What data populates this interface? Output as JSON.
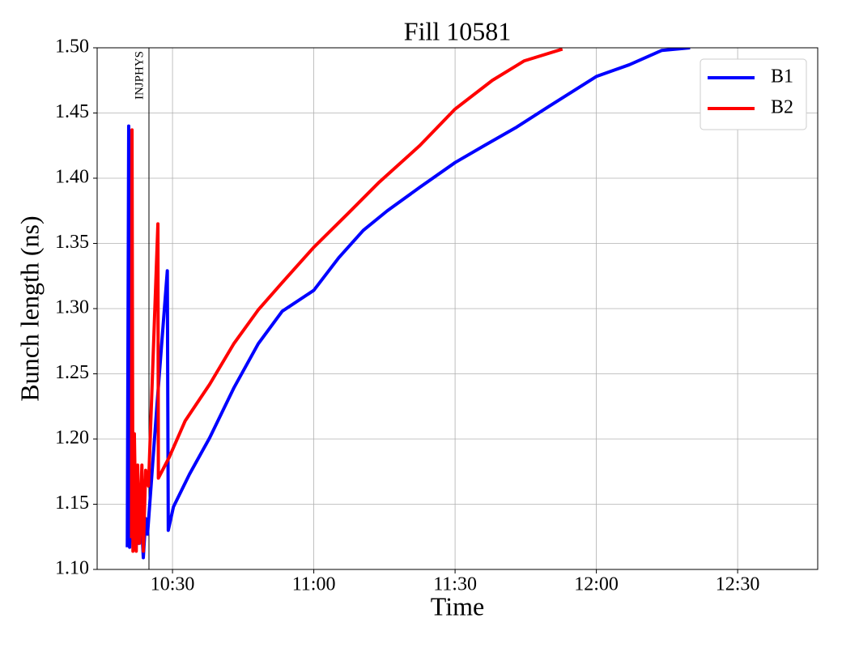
{
  "chart_data": {
    "type": "line",
    "title": "Fill 10581",
    "x_label": "Time",
    "y_label": "Bunch length (ns)",
    "xlim": [
      614,
      767
    ],
    "ylim": [
      1.1,
      1.5
    ],
    "xticks": [
      {
        "value": 630,
        "label": "10:30"
      },
      {
        "value": 660,
        "label": "11:00"
      },
      {
        "value": 690,
        "label": "11:30"
      },
      {
        "value": 720,
        "label": "12:00"
      },
      {
        "value": 750,
        "label": "12:30"
      }
    ],
    "yticks": [
      {
        "value": 1.1,
        "label": "1.10"
      },
      {
        "value": 1.15,
        "label": "1.15"
      },
      {
        "value": 1.2,
        "label": "1.20"
      },
      {
        "value": 1.25,
        "label": "1.25"
      },
      {
        "value": 1.3,
        "label": "1.30"
      },
      {
        "value": 1.35,
        "label": "1.35"
      },
      {
        "value": 1.4,
        "label": "1.40"
      },
      {
        "value": 1.45,
        "label": "1.45"
      },
      {
        "value": 1.5,
        "label": "1.50"
      }
    ],
    "grid": true,
    "legend": "upper right",
    "annotations": [
      {
        "x": 625,
        "text": "INJPHYS",
        "color": "#000000"
      }
    ],
    "series": [
      {
        "name": "B1",
        "color": "#0000ff",
        "x": [
          620.4,
          620.7,
          620.9,
          621.3,
          621.8,
          622.3,
          622.8,
          623.3,
          623.8,
          624.3,
          624.7,
          626.7,
          628.9,
          629.1,
          630.2,
          633.6,
          637.9,
          643.0,
          648.2,
          653.3,
          660.0,
          665.3,
          670.5,
          675.6,
          682.5,
          690.0,
          696.2,
          703.0,
          709.9,
          720.0,
          727.0,
          733.9,
          739.9
        ],
        "values": [
          1.117,
          1.44,
          1.117,
          1.145,
          1.127,
          1.139,
          1.12,
          1.145,
          1.109,
          1.139,
          1.127,
          1.226,
          1.329,
          1.13,
          1.148,
          1.173,
          1.201,
          1.239,
          1.273,
          1.298,
          1.314,
          1.339,
          1.36,
          1.375,
          1.393,
          1.412,
          1.425,
          1.439,
          1.455,
          1.478,
          1.487,
          1.498,
          1.5
        ]
      },
      {
        "name": "B2",
        "color": "#ff0000",
        "x": [
          621.3,
          621.4,
          621.6,
          621.9,
          622.3,
          622.6,
          623.0,
          623.5,
          623.8,
          624.3,
          624.9,
          626.9,
          627.0,
          629.3,
          632.7,
          637.9,
          643.0,
          648.2,
          653.3,
          660.0,
          667.0,
          673.9,
          682.5,
          690.0,
          697.9,
          704.7,
          712.8
        ],
        "values": [
          1.124,
          1.437,
          1.114,
          1.204,
          1.114,
          1.18,
          1.12,
          1.18,
          1.114,
          1.176,
          1.164,
          1.365,
          1.17,
          1.186,
          1.214,
          1.242,
          1.273,
          1.299,
          1.32,
          1.347,
          1.372,
          1.397,
          1.425,
          1.453,
          1.475,
          1.49,
          1.499
        ]
      }
    ]
  }
}
